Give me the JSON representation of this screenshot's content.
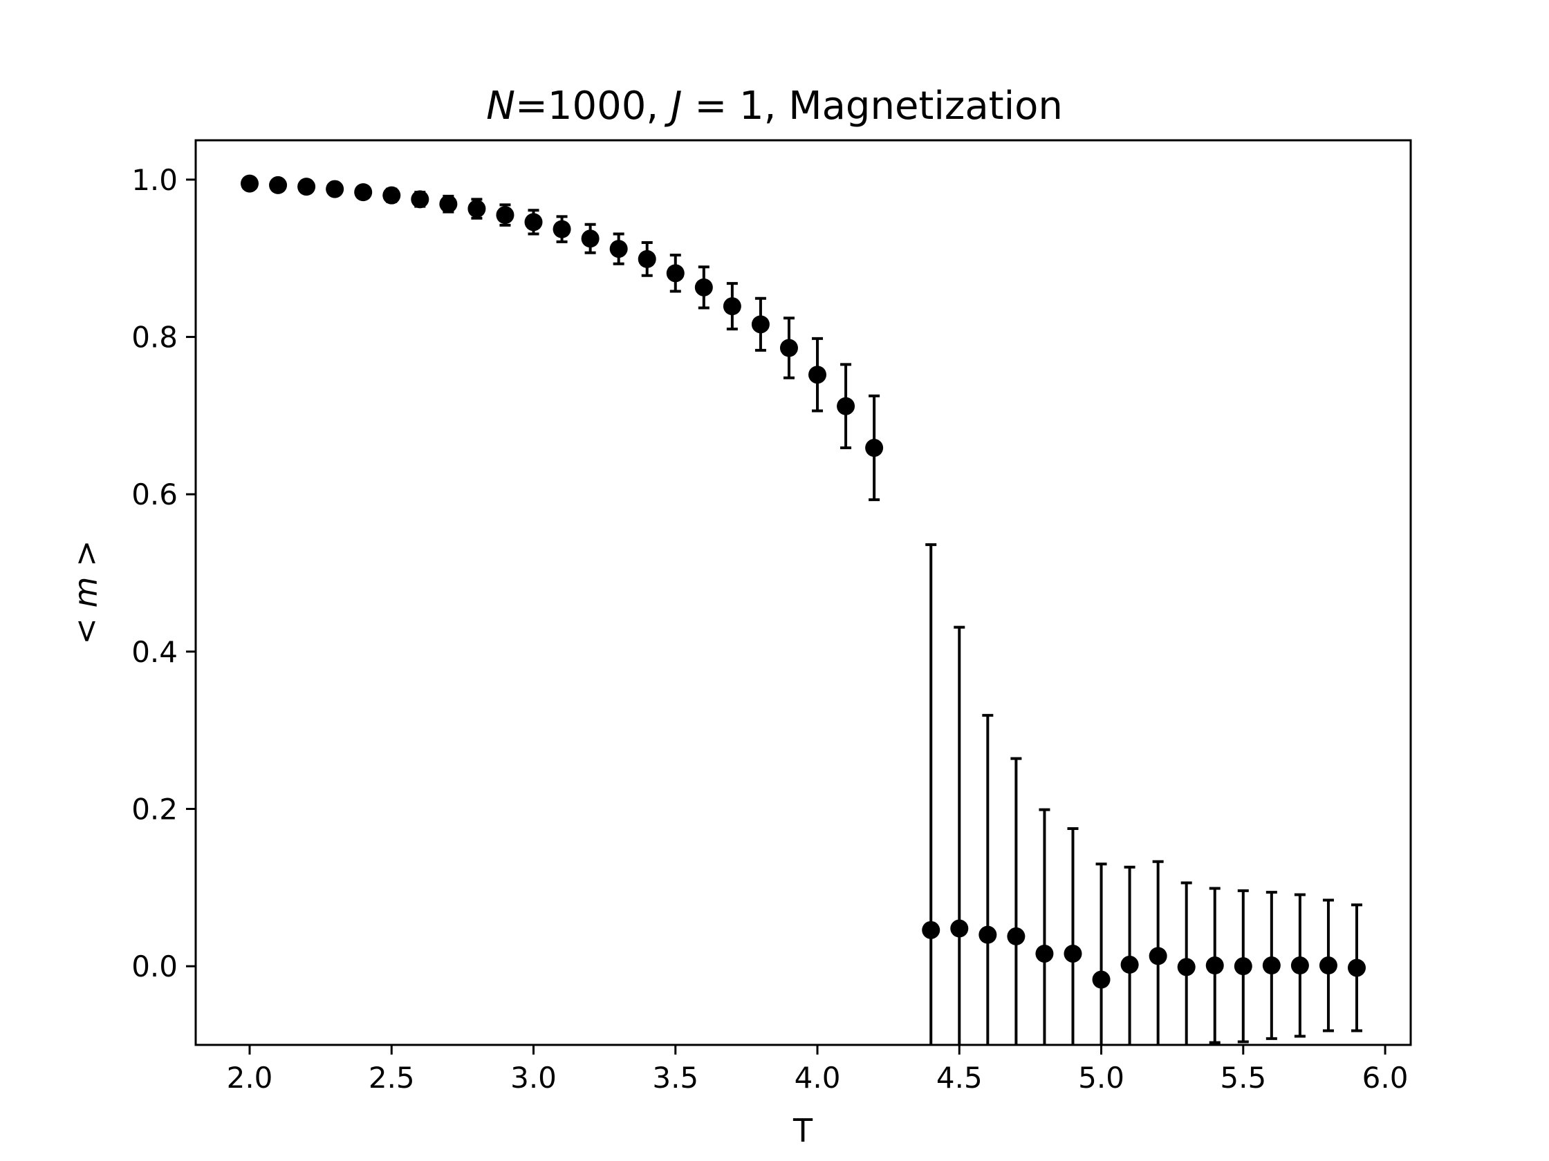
{
  "chart_data": {
    "type": "scatter",
    "title": {
      "n_var": "N",
      "n_eq": "=1000, ",
      "j_var": "J",
      "j_eq": " = 1, Magnetization"
    },
    "xlabel": "T",
    "ylabel": {
      "left": "< ",
      "var": "m",
      "right": " >"
    },
    "xlim": [
      1.81,
      6.09
    ],
    "ylim": [
      -0.1,
      1.05
    ],
    "xticks": [
      2.0,
      2.5,
      3.0,
      3.5,
      4.0,
      4.5,
      5.0,
      5.5,
      6.0
    ],
    "xtick_labels": [
      "2.0",
      "2.5",
      "3.0",
      "3.5",
      "4.0",
      "4.5",
      "5.0",
      "5.5",
      "6.0"
    ],
    "yticks": [
      0.0,
      0.2,
      0.4,
      0.6,
      0.8,
      1.0
    ],
    "ytick_labels": [
      "0.0",
      "0.2",
      "0.4",
      "0.6",
      "0.8",
      "1.0"
    ],
    "grid": false,
    "marker_color": "#000000",
    "series": [
      {
        "x": [
          2.0,
          2.1,
          2.2,
          2.3,
          2.4,
          2.5,
          2.6,
          2.7,
          2.8,
          2.9,
          3.0,
          3.1,
          3.2,
          3.3,
          3.4,
          3.5,
          3.6,
          3.7,
          3.8,
          3.9,
          4.0,
          4.1,
          4.2,
          4.4,
          4.5,
          4.6,
          4.7,
          4.8,
          4.9,
          5.0,
          5.1,
          5.2,
          5.3,
          5.4,
          5.5,
          5.6,
          5.7,
          5.8,
          5.9
        ],
        "y": [
          0.995,
          0.993,
          0.991,
          0.988,
          0.984,
          0.98,
          0.975,
          0.969,
          0.963,
          0.955,
          0.946,
          0.937,
          0.925,
          0.912,
          0.899,
          0.881,
          0.863,
          0.839,
          0.816,
          0.786,
          0.752,
          0.712,
          0.659,
          0.046,
          0.048,
          0.04,
          0.038,
          0.016,
          0.016,
          -0.017,
          0.002,
          0.013,
          -0.001,
          0.001,
          0.0,
          0.001,
          0.001,
          0.001,
          -0.002
        ],
        "yerr": [
          0.003,
          0.004,
          0.005,
          0.006,
          0.007,
          0.008,
          0.009,
          0.01,
          0.012,
          0.013,
          0.015,
          0.016,
          0.018,
          0.019,
          0.021,
          0.023,
          0.026,
          0.029,
          0.033,
          0.038,
          0.046,
          0.053,
          0.066,
          0.49,
          0.383,
          0.279,
          0.226,
          0.183,
          0.159,
          0.147,
          0.124,
          0.12,
          0.107,
          0.098,
          0.096,
          0.093,
          0.09,
          0.083,
          0.08
        ]
      }
    ]
  }
}
